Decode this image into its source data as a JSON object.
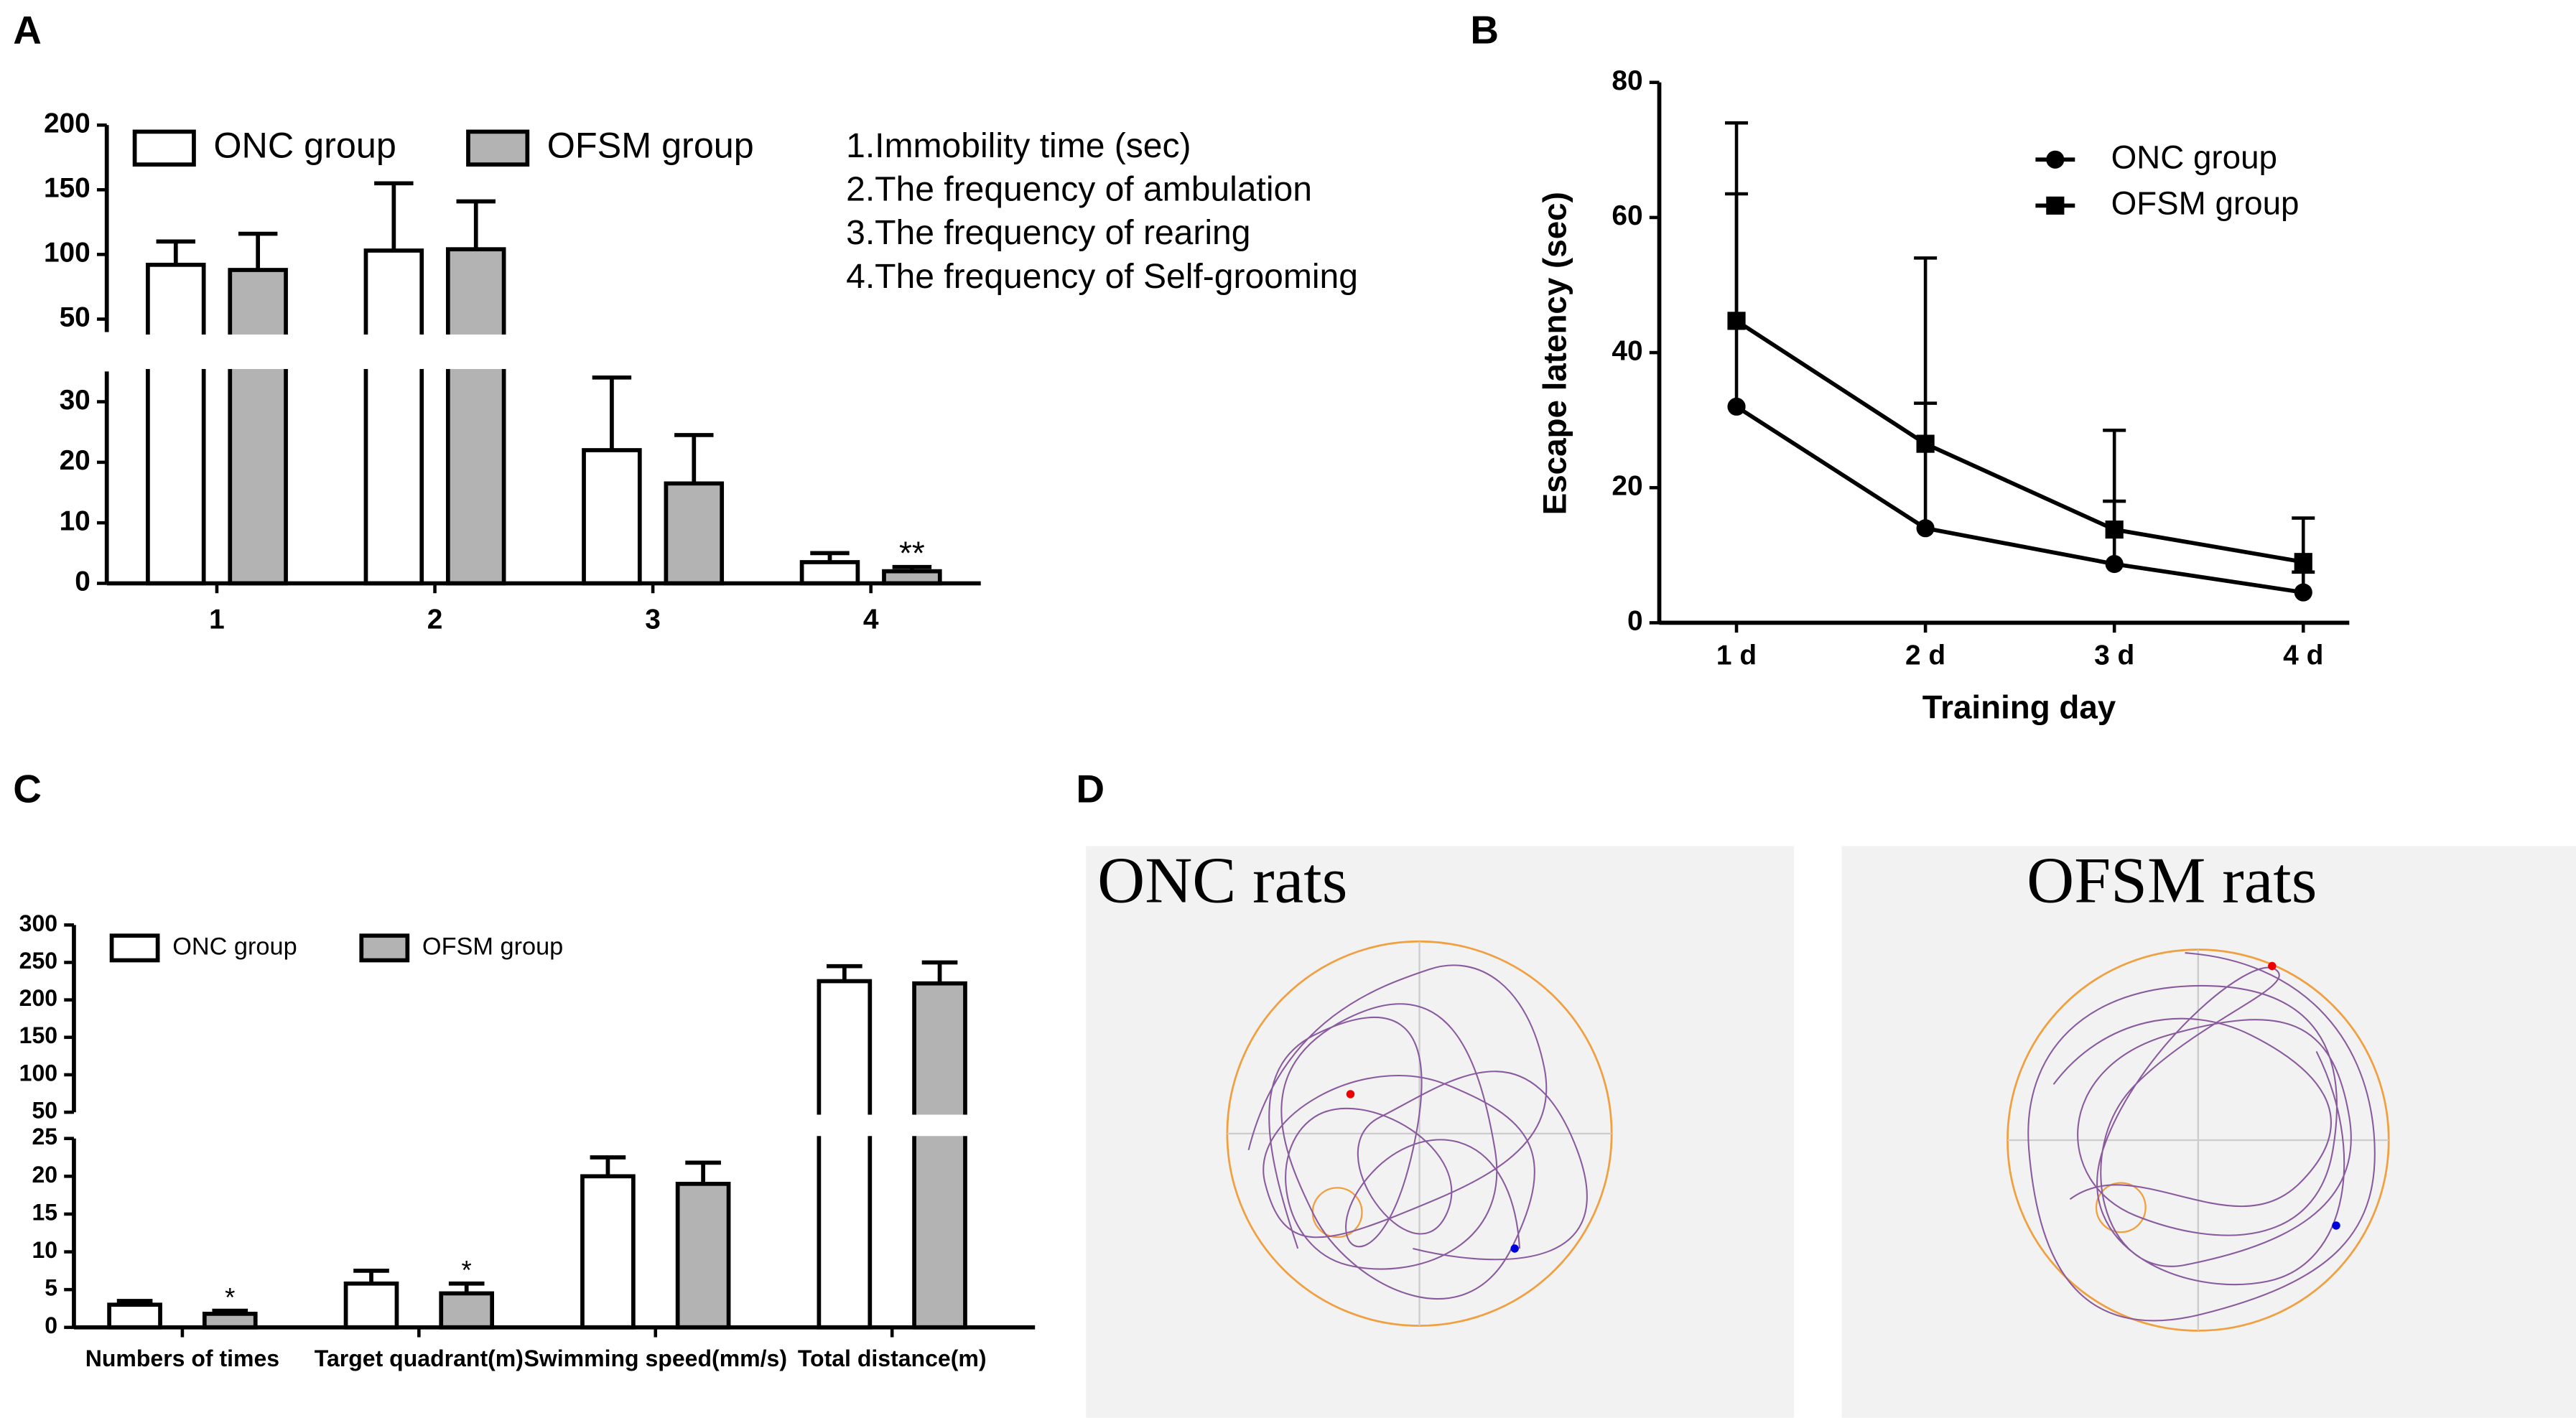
{
  "chart_data": [
    {
      "panel": "A",
      "type": "bar",
      "categories": [
        "1",
        "2",
        "3",
        "4"
      ],
      "series": [
        {
          "name": "ONC group",
          "color": "#ffffff",
          "values": [
            92,
            103,
            22,
            3.5
          ],
          "errors": [
            18,
            52,
            12,
            1.5
          ]
        },
        {
          "name": "OFSM group",
          "color": "#b3b3b3",
          "values": [
            88,
            104,
            16.5,
            2
          ],
          "errors": [
            28,
            37,
            8,
            0.7
          ],
          "annotations": [
            null,
            null,
            null,
            "**"
          ]
        }
      ],
      "ylim": [
        0,
        200
      ],
      "ybreak": [
        35,
        40
      ],
      "yticks": [
        0,
        10,
        20,
        30,
        50,
        100,
        150,
        200
      ],
      "notes": [
        "1.Immobility time (sec)",
        "2.The frequency of ambulation",
        "3.The frequency of rearing",
        "4.The frequency of Self-grooming"
      ]
    },
    {
      "panel": "B",
      "type": "line",
      "x_label": "Training day",
      "y_label": "Escape latency (sec)",
      "categories": [
        "1 d",
        "2 d",
        "3 d",
        "4 d"
      ],
      "series": [
        {
          "name": "ONC group",
          "color": "#000000",
          "marker": "circle",
          "values": [
            32,
            14,
            8.7,
            4.5
          ],
          "errors": [
            31.5,
            18.5,
            9.3,
            3
          ]
        },
        {
          "name": "OFSM group",
          "color": "#000000",
          "marker": "square",
          "values": [
            44.7,
            26.5,
            13.8,
            9
          ],
          "errors": [
            29.3,
            27.5,
            14.7,
            6.5
          ]
        }
      ],
      "ylim": [
        0,
        80
      ],
      "yticks": [
        0,
        20,
        40,
        60,
        80
      ]
    },
    {
      "panel": "C",
      "type": "bar",
      "categories": [
        "Numbers of times",
        "Target quadrant(m)",
        "Swimming speed(mm/s)",
        "Total distance(m)"
      ],
      "series": [
        {
          "name": "ONC group",
          "color": "#ffffff",
          "values": [
            3,
            5.8,
            20,
            225
          ],
          "errors": [
            0.5,
            1.7,
            2.5,
            20
          ]
        },
        {
          "name": "OFSM group",
          "color": "#b3b3b3",
          "values": [
            1.8,
            4.5,
            19,
            222
          ],
          "errors": [
            0.4,
            1.3,
            2.8,
            28
          ],
          "annotations": [
            "*",
            "*",
            null,
            null
          ]
        }
      ],
      "ylim": [
        0,
        300
      ],
      "ybreak": [
        25,
        50
      ],
      "yticks": [
        0,
        5,
        10,
        15,
        20,
        25,
        50,
        100,
        150,
        200,
        250,
        300
      ]
    }
  ],
  "panel_d": {
    "panel": "D",
    "titles": [
      "ONC rats",
      "OFSM rats"
    ]
  }
}
